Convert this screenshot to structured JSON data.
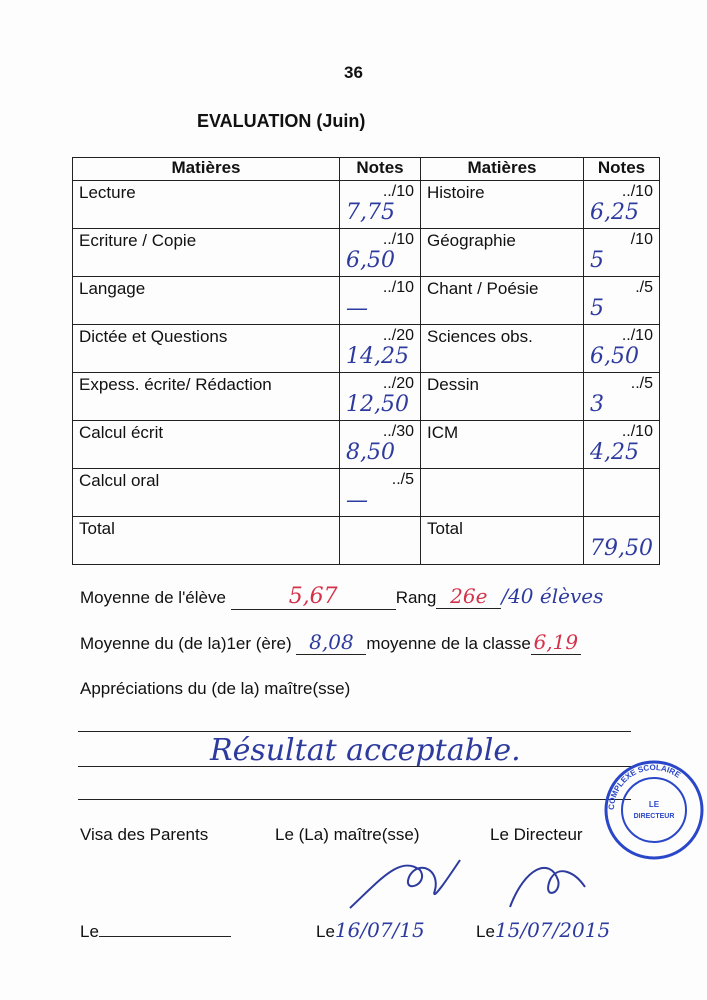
{
  "page_number": "36",
  "title": "EVALUATION (Juin)",
  "table": {
    "headers": [
      "Matières",
      "Notes",
      "Matières",
      "Notes"
    ],
    "rows": [
      {
        "left_subject": "Lecture",
        "left_scale": "../10",
        "left_grade": "7,75",
        "right_subject": "Histoire",
        "right_scale": "../10",
        "right_grade": "6,25"
      },
      {
        "left_subject": "Ecriture / Copie",
        "left_scale": "../10",
        "left_grade": "6,50",
        "right_subject": "Géographie",
        "right_scale": "/10",
        "right_grade": "5"
      },
      {
        "left_subject": "Langage",
        "left_scale": "../10",
        "left_grade": "—",
        "right_subject": "Chant / Poésie",
        "right_scale": "./5",
        "right_grade": "5"
      },
      {
        "left_subject": "Dictée et Questions",
        "left_scale": "../20",
        "left_grade": "14,25",
        "right_subject": "Sciences obs.",
        "right_scale": "../10",
        "right_grade": "6,50"
      },
      {
        "left_subject": "Expess. écrite/ Rédaction",
        "left_scale": "../20",
        "left_grade": "12,50",
        "right_subject": "Dessin",
        "right_scale": "../5",
        "right_grade": "3"
      },
      {
        "left_subject": "Calcul écrit",
        "left_scale": "../30",
        "left_grade": "8,50",
        "right_subject": "ICM",
        "right_scale": "../10",
        "right_grade": "4,25"
      },
      {
        "left_subject": "Calcul oral",
        "left_scale": "../5",
        "left_grade": "—",
        "right_subject": "",
        "right_scale": "",
        "right_grade": ""
      },
      {
        "left_subject": "Total",
        "left_scale": "",
        "left_grade": "",
        "right_subject": "Total",
        "right_scale": "",
        "right_grade": "79,50"
      }
    ]
  },
  "summary": {
    "moyenne_eleve_label": "Moyenne de l'élève",
    "moyenne_eleve_value": "5,67",
    "rang_label": "Rang",
    "rang_value": "26e",
    "rang_total": "/40 élèves",
    "moyenne_premier_label": "Moyenne du (de la)1er (ère)",
    "moyenne_premier_value": "8,08",
    "moyenne_classe_label": "moyenne de la classe",
    "moyenne_classe_value": "6,19",
    "appreciations_label": "Appréciations du (de la)  maître(sse)",
    "appreciation_value": "Résultat acceptable."
  },
  "signatures": {
    "parents_label": "Visa des Parents",
    "maitre_label": "Le (La)  maître(sse)",
    "directeur_label": "Le Directeur",
    "le_label": "Le",
    "date_maitre": "16/07/15",
    "date_directeur": "15/07/2015"
  },
  "stamp": {
    "text": "COMPLEXE SCOLAIRE ... LE DIRECTEUR ELEMENTAIRE",
    "color": "#2b47c9"
  },
  "colors": {
    "ink_blue": "#2d3a9e",
    "ink_red": "#d4314a"
  }
}
